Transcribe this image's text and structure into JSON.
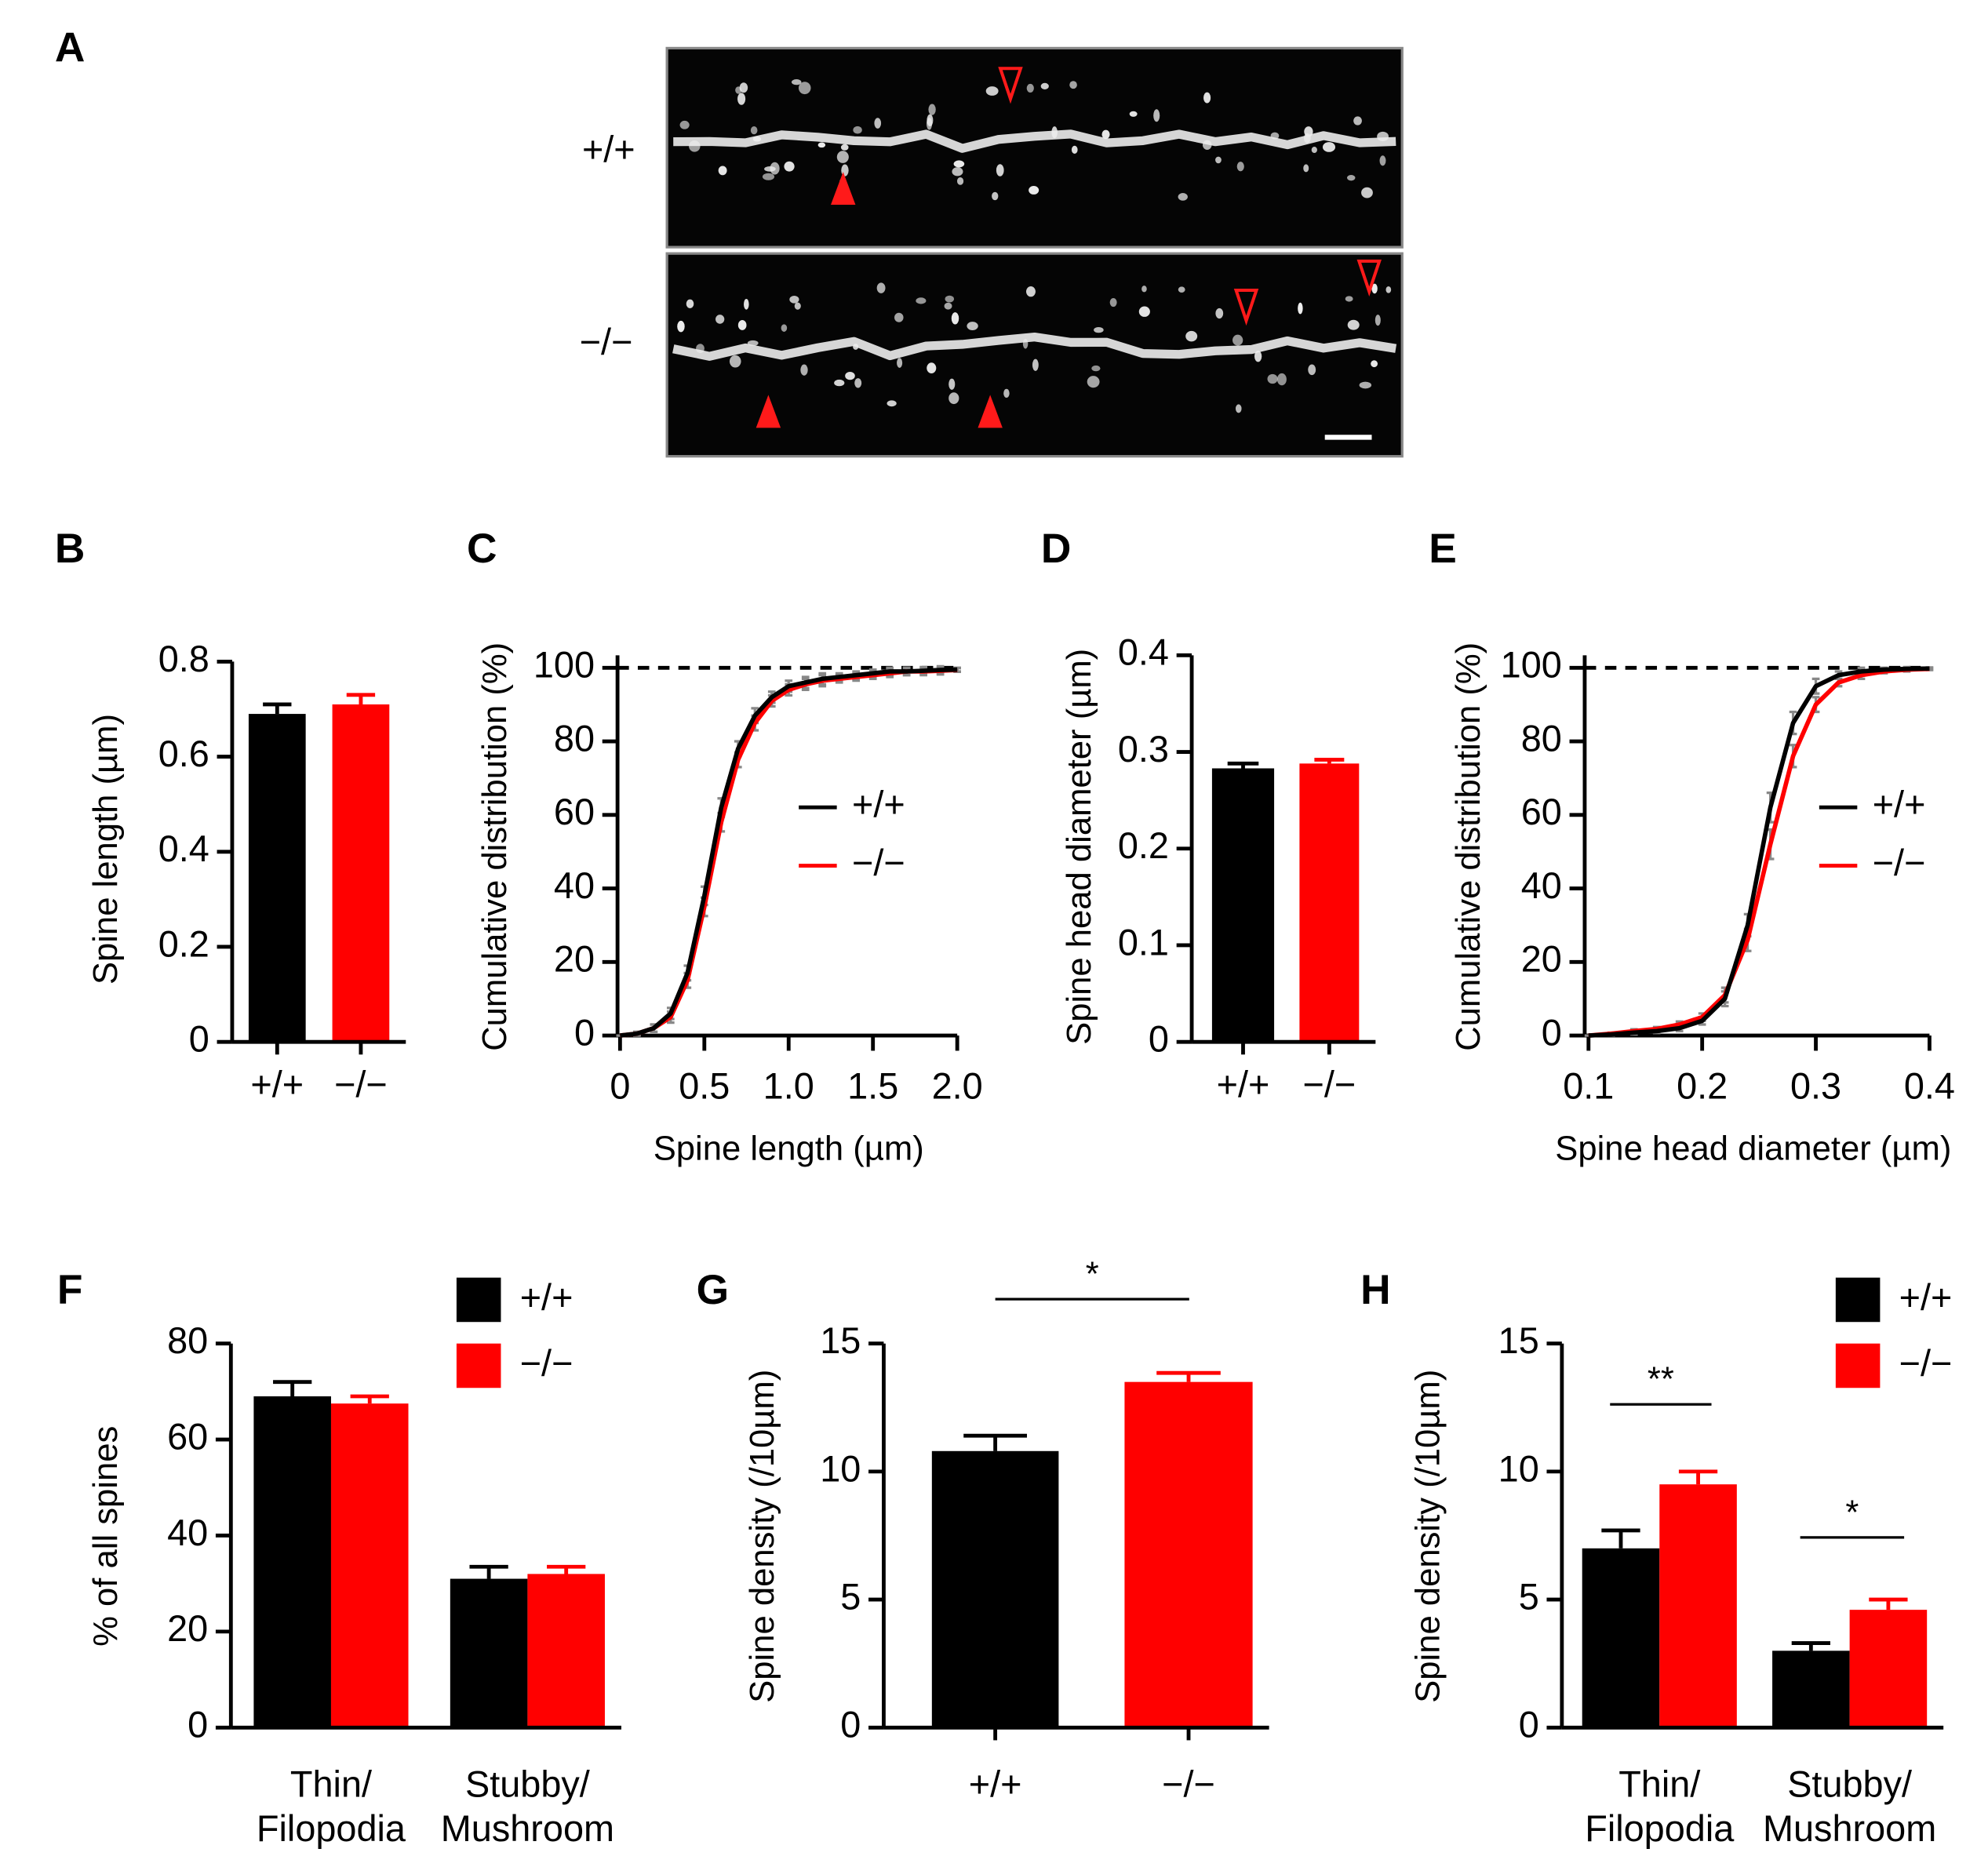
{
  "chart_data": [
    {
      "panel": "A",
      "type": "micrograph",
      "rows": [
        "+/+",
        "−/−"
      ]
    },
    {
      "panel": "B",
      "type": "bar",
      "ylabel": "Spine length (µm)",
      "categories": [
        "+/+",
        "−/−"
      ],
      "values": [
        0.69,
        0.71
      ],
      "errors": [
        0.02,
        0.02
      ],
      "colors": [
        "#000000",
        "#ff0000"
      ],
      "ylim": [
        0,
        0.8
      ],
      "yticks": [
        0,
        0.2,
        0.4,
        0.6,
        0.8
      ]
    },
    {
      "panel": "C",
      "type": "line",
      "ylabel": "Cumulative distribution (%)",
      "xlabel": "Spine length (µm)",
      "x": [
        0,
        0.1,
        0.2,
        0.3,
        0.4,
        0.5,
        0.6,
        0.7,
        0.8,
        0.9,
        1.0,
        1.1,
        1.2,
        1.3,
        1.4,
        1.5,
        1.6,
        1.7,
        1.8,
        1.9,
        2.0
      ],
      "series": [
        {
          "name": "+/+",
          "color": "#000000",
          "values": [
            0,
            0.5,
            2,
            6,
            17,
            38,
            62,
            78,
            87,
            92,
            95,
            96,
            97,
            97.5,
            98,
            98.5,
            99,
            99,
            99.2,
            99.4,
            99.5
          ],
          "errors": [
            0,
            0.5,
            1,
            1.5,
            2,
            2.5,
            2.5,
            2,
            2,
            1.5,
            1.5,
            1.5,
            1.5,
            1,
            1,
            1,
            1,
            1,
            1,
            1,
            0.5
          ]
        },
        {
          "name": "−/−",
          "color": "#ff0000",
          "values": [
            0,
            0.5,
            2,
            5,
            15,
            35,
            58,
            75,
            85,
            91,
            94,
            95.5,
            96.5,
            97,
            97.5,
            98,
            98.5,
            99,
            99,
            99.2,
            99.4
          ],
          "errors": [
            0,
            0.5,
            1,
            1.5,
            2,
            2.5,
            2.5,
            2,
            2,
            1.5,
            1.5,
            1.5,
            1.5,
            1,
            1,
            1,
            1,
            1,
            1,
            1,
            0.5
          ]
        }
      ],
      "reference_line": 100,
      "xlim": [
        0,
        2
      ],
      "xticks": [
        0,
        0.5,
        {
          "value": 1,
          "label": "1.0"
        },
        1.5,
        {
          "value": 2,
          "label": "2.0"
        }
      ],
      "ylim": [
        0,
        103.4
      ],
      "yticks": [
        0,
        20,
        40,
        60,
        80,
        100
      ]
    },
    {
      "panel": "D",
      "type": "bar",
      "ylabel": "Spine head diameter (µm)",
      "categories": [
        "+/+",
        "−/−"
      ],
      "values": [
        0.283,
        0.288
      ],
      "errors": [
        0.005,
        0.004
      ],
      "colors": [
        "#000000",
        "#ff0000"
      ],
      "ylim": [
        0,
        0.4
      ],
      "yticks": [
        0,
        0.1,
        0.2,
        0.3,
        0.4
      ]
    },
    {
      "panel": "E",
      "type": "line",
      "ylabel": "Cumulative distribution (%)",
      "xlabel": "Spine head diameter (µm)",
      "x": [
        0.1,
        0.12,
        0.14,
        0.16,
        0.18,
        0.2,
        0.22,
        0.24,
        0.26,
        0.28,
        0.3,
        0.32,
        0.34,
        0.36,
        0.38,
        0.4
      ],
      "series": [
        {
          "name": "+/+",
          "color": "#000000",
          "values": [
            0,
            0.3,
            0.8,
            1.2,
            2,
            4,
            10,
            30,
            62,
            85,
            95,
            98,
            99,
            99.5,
            99.7,
            99.8
          ],
          "errors": [
            0,
            0.3,
            0.5,
            0.5,
            0.8,
            1,
            2,
            3,
            4,
            3,
            2,
            1,
            1,
            0.5,
            0.5,
            0.3
          ]
        },
        {
          "name": "−/−",
          "color": "#ff0000",
          "values": [
            0,
            0.5,
            1.2,
            1.8,
            3,
            5,
            11,
            26,
            52,
            76,
            90,
            96,
            98,
            99,
            99.5,
            99.7
          ],
          "errors": [
            0,
            0.3,
            0.5,
            0.5,
            0.8,
            1,
            2,
            3,
            4,
            3,
            2,
            1,
            1,
            0.5,
            0.5,
            0.3
          ]
        }
      ],
      "reference_line": 100,
      "xlim": [
        0.1,
        0.4
      ],
      "xticks": [
        0.1,
        0.2,
        0.3,
        0.4
      ],
      "ylim": [
        0,
        103.4
      ],
      "yticks": [
        0,
        20,
        40,
        60,
        80,
        100
      ]
    },
    {
      "panel": "F",
      "type": "grouped_bar",
      "ylabel": "% of all spines",
      "categories": [
        [
          "Thin/",
          "Filopodia"
        ],
        [
          "Stubby/",
          "Mushroom"
        ]
      ],
      "series": [
        {
          "name": "+/+",
          "color": "#000000",
          "values": [
            69,
            31
          ],
          "errors": [
            3,
            2.5
          ]
        },
        {
          "name": "−/−",
          "color": "#ff0000",
          "values": [
            67.5,
            32
          ],
          "errors": [
            1.5,
            1.5
          ]
        }
      ],
      "ylim": [
        0,
        80
      ],
      "yticks": [
        0,
        20,
        40,
        60,
        80
      ]
    },
    {
      "panel": "G",
      "type": "bar",
      "ylabel": "Spine density (/10µm)",
      "categories": [
        "+/+",
        "−/−"
      ],
      "values": [
        10.8,
        13.5
      ],
      "errors": [
        0.6,
        0.35
      ],
      "colors": [
        "#000000",
        "#ff0000"
      ],
      "annotations": [
        "*"
      ],
      "ylim": [
        0,
        15
      ],
      "yticks": [
        0,
        5,
        10,
        15
      ]
    },
    {
      "panel": "H",
      "type": "grouped_bar",
      "ylabel": "Spine density (/10µm)",
      "categories": [
        [
          "Thin/",
          "Filopodia"
        ],
        [
          "Stubby/",
          "Mushroom"
        ]
      ],
      "series": [
        {
          "name": "+/+",
          "color": "#000000",
          "values": [
            7,
            3
          ],
          "errors": [
            0.7,
            0.3
          ]
        },
        {
          "name": "−/−",
          "color": "#ff0000",
          "values": [
            9.5,
            4.6
          ],
          "errors": [
            0.5,
            0.4
          ]
        }
      ],
      "annotations": [
        "**",
        "*"
      ],
      "ylim": [
        0,
        15
      ],
      "yticks": [
        0,
        5,
        10,
        15
      ]
    }
  ]
}
